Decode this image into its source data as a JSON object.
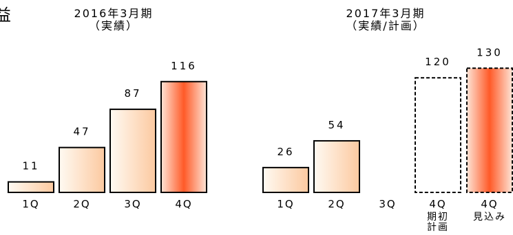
{
  "partial_glyph": "益",
  "chart_data": [
    {
      "type": "bar",
      "title_line1": "2016年3月期",
      "title_line2": "（実績）",
      "categories": [
        "1Q",
        "2Q",
        "3Q",
        "4Q"
      ],
      "values": [
        11,
        47,
        87,
        116
      ],
      "value_labels": [
        "11",
        "47",
        "87",
        "116"
      ],
      "bar_styles": [
        "actual",
        "actual",
        "actual",
        "highlight"
      ],
      "ylim": [
        0,
        130
      ]
    },
    {
      "type": "bar",
      "title_line1": "2017年3月期",
      "title_line2": "（実績/計画）",
      "categories": [
        "1Q",
        "2Q",
        "3Q",
        "4Q",
        "4Q"
      ],
      "category_sublabels": [
        "",
        "",
        "",
        "期初\n計画",
        "見込み"
      ],
      "values": [
        26,
        54,
        null,
        120,
        130
      ],
      "value_labels": [
        "26",
        "54",
        "",
        "120",
        "130"
      ],
      "bar_styles": [
        "actual",
        "actual",
        "none",
        "plan-dashed",
        "forecast-dashed"
      ],
      "ylim": [
        0,
        130
      ]
    }
  ],
  "colors": {
    "bar_light": "#fffaf2",
    "bar_mid": "#fcc9a0",
    "bar_highlight_edge": "#fde4d6",
    "bar_highlight_core": "#ff5a28",
    "outline": "#000000"
  }
}
